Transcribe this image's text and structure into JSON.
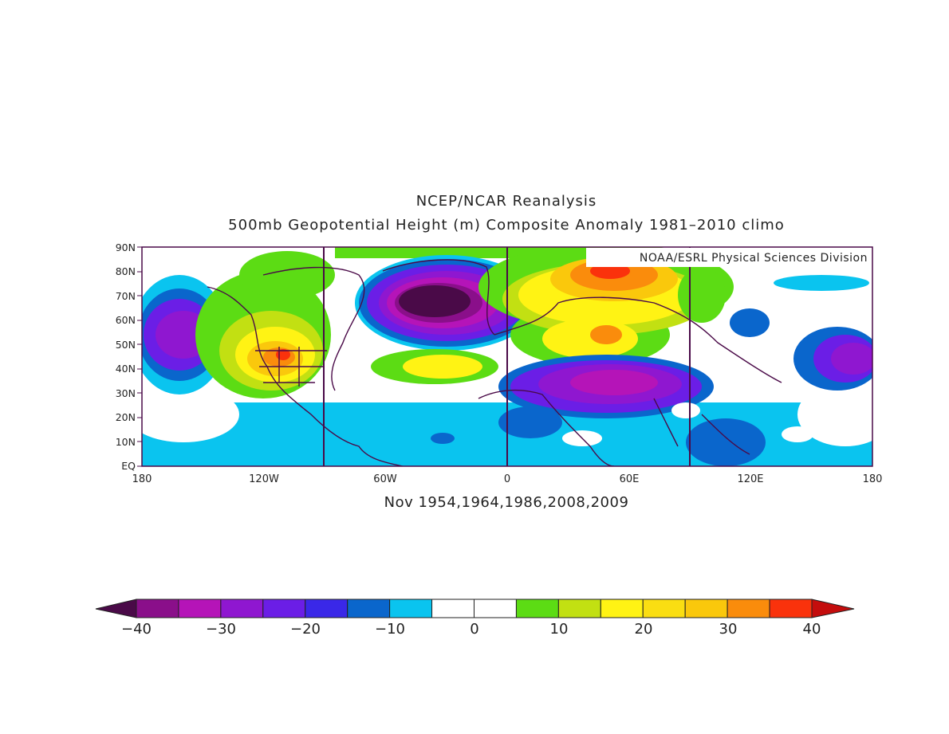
{
  "title": "NCEP/NCAR Reanalysis",
  "subtitle": "500mb Geopotential Height (m) Composite Anomaly 1981–2010 climo",
  "credit": "NOAA/ESRL Physical Sciences Division",
  "date_label": "Nov 1954,1964,1986,2008,2009",
  "lat_labels": [
    "90N",
    "80N",
    "70N",
    "60N",
    "50N",
    "40N",
    "30N",
    "20N",
    "10N",
    "EQ"
  ],
  "lon_labels": [
    "180",
    "120W",
    "60W",
    "0",
    "60E",
    "120E",
    "180"
  ],
  "colorbar": {
    "tick_labels": [
      "−40",
      "−30",
      "−20",
      "−10",
      "0",
      "10",
      "20",
      "30",
      "40"
    ],
    "colors": [
      "#4a0a48",
      "#8a0f8a",
      "#b514b8",
      "#8f17d0",
      "#6b1ee6",
      "#3a28e8",
      "#0a66cc",
      "#0ac4ef",
      "#ffffff",
      "#ffffff",
      "#5cdc14",
      "#c2e012",
      "#fff314",
      "#fade12",
      "#fac80c",
      "#fa8c0c",
      "#fa320c",
      "#c40d0d"
    ]
  }
}
